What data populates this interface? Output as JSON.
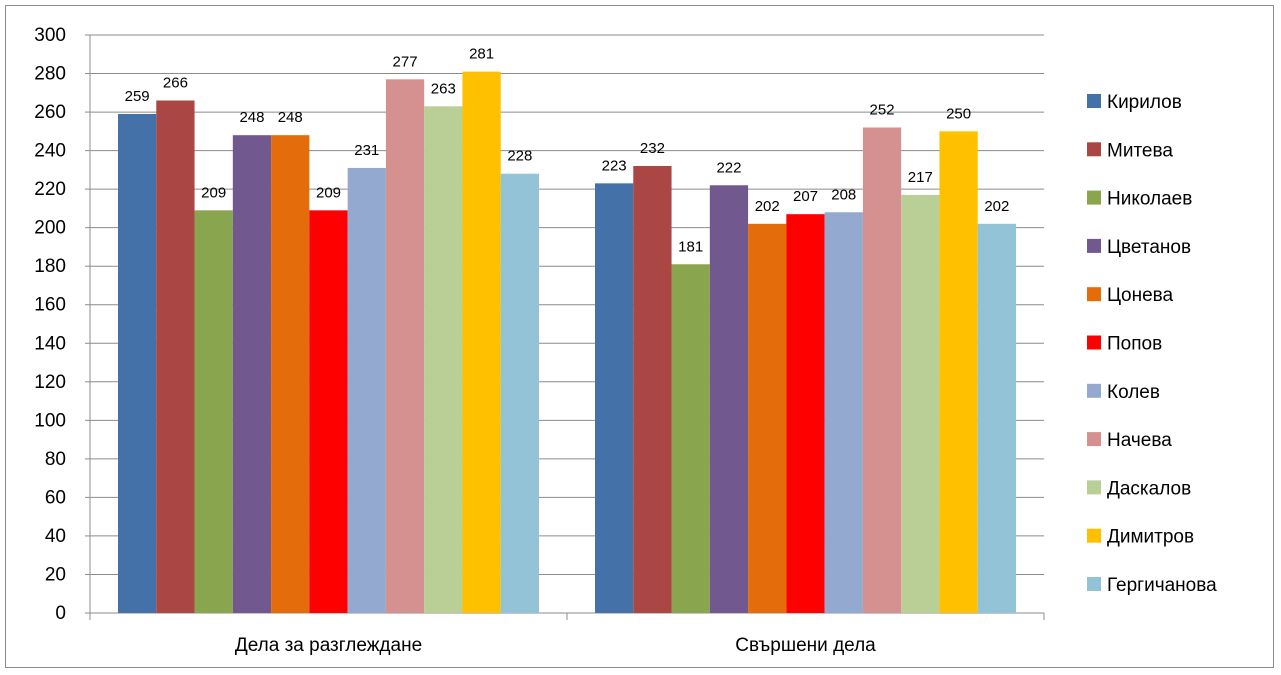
{
  "chart_data": {
    "type": "bar",
    "categories": [
      "Дела за разглеждане",
      "Свършени дела"
    ],
    "ylim": [
      0,
      300
    ],
    "ytick_step": 20,
    "grid": true,
    "legend_position": "right",
    "series": [
      {
        "name": "Кирилов",
        "color": "#4472A8",
        "values": [
          259,
          223
        ]
      },
      {
        "name": "Митева",
        "color": "#AA4643",
        "values": [
          266,
          232
        ]
      },
      {
        "name": "Николаев",
        "color": "#89A54E",
        "values": [
          209,
          181
        ]
      },
      {
        "name": "Цветанов",
        "color": "#71588F",
        "values": [
          248,
          222
        ]
      },
      {
        "name": "Цонева",
        "color": "#E46C0A",
        "values": [
          248,
          202
        ]
      },
      {
        "name": "Попов",
        "color": "#FF0000",
        "values": [
          209,
          207
        ]
      },
      {
        "name": "Колев",
        "color": "#94A9D0",
        "values": [
          231,
          208
        ]
      },
      {
        "name": "Начева",
        "color": "#D4918F",
        "values": [
          277,
          252
        ]
      },
      {
        "name": "Даскалов",
        "color": "#B9CF95",
        "values": [
          263,
          217
        ]
      },
      {
        "name": "Димитров",
        "color": "#FFC000",
        "values": [
          281,
          250
        ]
      },
      {
        "name": "Гергичанова",
        "color": "#93C3D6",
        "values": [
          228,
          202
        ]
      }
    ]
  }
}
